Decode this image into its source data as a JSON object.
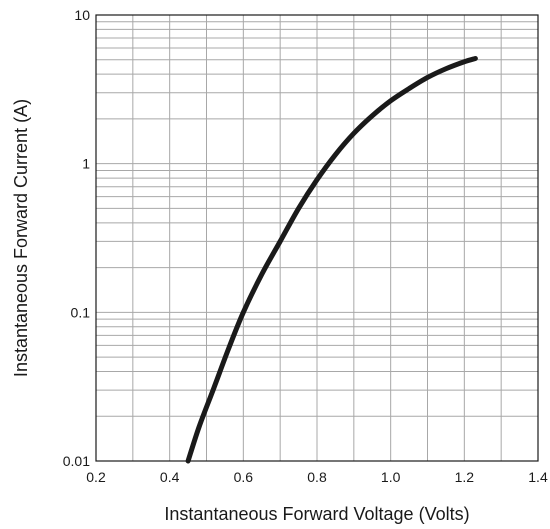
{
  "chart_data": {
    "type": "line",
    "title": "",
    "xlabel": "Instantaneous Forward Voltage (Volts)",
    "ylabel": "Instantaneous Forward Current (A)",
    "xlim": [
      0.2,
      1.4
    ],
    "ylim": [
      0.01,
      10
    ],
    "y_scale": "log",
    "grid": true,
    "x_ticks": [
      {
        "value": 0.2,
        "label": "0.2"
      },
      {
        "value": 0.4,
        "label": "0.4"
      },
      {
        "value": 0.6,
        "label": "0.6"
      },
      {
        "value": 0.8,
        "label": "0.8"
      },
      {
        "value": 1.0,
        "label": "1.0"
      },
      {
        "value": 1.2,
        "label": "1.2"
      },
      {
        "value": 1.4,
        "label": "1.4"
      }
    ],
    "y_ticks": [
      {
        "value": 0.01,
        "label": "0.01"
      },
      {
        "value": 0.1,
        "label": "0.1"
      },
      {
        "value": 1,
        "label": "1"
      },
      {
        "value": 10,
        "label": "10"
      }
    ],
    "series": [
      {
        "color": "#1a1a1a",
        "x": [
          0.45,
          0.48,
          0.52,
          0.56,
          0.6,
          0.65,
          0.7,
          0.75,
          0.8,
          0.85,
          0.9,
          0.95,
          1.0,
          1.05,
          1.1,
          1.15,
          1.2,
          1.23
        ],
        "y": [
          0.01,
          0.017,
          0.031,
          0.057,
          0.1,
          0.18,
          0.3,
          0.5,
          0.78,
          1.15,
          1.6,
          2.1,
          2.65,
          3.2,
          3.8,
          4.35,
          4.85,
          5.1
        ]
      }
    ]
  }
}
